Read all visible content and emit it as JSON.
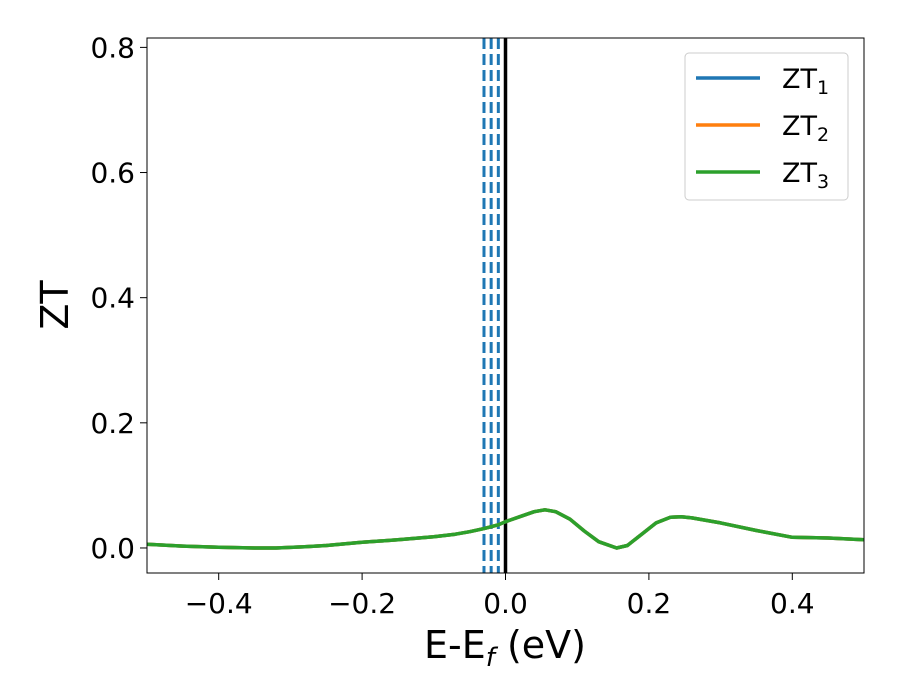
{
  "chart_data": {
    "type": "line",
    "xlabel": "E-E",
    "xlabel_sub": "f",
    "xlabel_unit": " (eV)",
    "ylabel": "ZT",
    "xlim": [
      -0.5,
      0.5
    ],
    "ylim": [
      -0.04,
      0.815
    ],
    "xticks": [
      -0.4,
      -0.2,
      0.0,
      0.2,
      0.4
    ],
    "xtick_labels": [
      "−0.4",
      "−0.2",
      "0.0",
      "0.2",
      "0.4"
    ],
    "yticks": [
      0.0,
      0.2,
      0.4,
      0.6,
      0.8
    ],
    "ytick_labels": [
      "0.0",
      "0.2",
      "0.4",
      "0.6",
      "0.8"
    ],
    "grid": false,
    "legend_position": "top-right",
    "series": [
      {
        "name": "ZT",
        "name_sub": "1",
        "color": "#1f77b4",
        "x": [
          -0.5,
          -0.45,
          -0.4,
          -0.35,
          -0.32,
          -0.28,
          -0.25,
          -0.2,
          -0.15,
          -0.1,
          -0.07,
          -0.05,
          -0.03,
          -0.02,
          -0.01,
          0.0,
          0.02,
          0.04,
          0.055,
          0.07,
          0.09,
          0.11,
          0.13,
          0.155,
          0.17,
          0.19,
          0.21,
          0.23,
          0.245,
          0.26,
          0.3,
          0.35,
          0.4,
          0.45,
          0.5
        ],
        "y": [
          0.006,
          0.003,
          0.001,
          0.0,
          0.0,
          0.002,
          0.004,
          0.009,
          0.013,
          0.018,
          0.022,
          0.026,
          0.031,
          0.034,
          0.037,
          0.042,
          0.05,
          0.058,
          0.061,
          0.058,
          0.046,
          0.027,
          0.01,
          0.0,
          0.004,
          0.022,
          0.04,
          0.049,
          0.05,
          0.048,
          0.04,
          0.028,
          0.017,
          0.016,
          0.013
        ]
      },
      {
        "name": "ZT",
        "name_sub": "2",
        "color": "#ff7f0e",
        "x": [
          -0.5,
          -0.45,
          -0.4,
          -0.35,
          -0.32,
          -0.28,
          -0.25,
          -0.2,
          -0.15,
          -0.1,
          -0.07,
          -0.05,
          -0.03,
          -0.02,
          -0.01,
          0.0,
          0.02,
          0.04,
          0.055,
          0.07,
          0.09,
          0.11,
          0.13,
          0.155,
          0.17,
          0.19,
          0.21,
          0.23,
          0.245,
          0.26,
          0.3,
          0.35,
          0.4,
          0.45,
          0.5
        ],
        "y": [
          0.006,
          0.003,
          0.001,
          0.0,
          0.0,
          0.002,
          0.004,
          0.009,
          0.013,
          0.018,
          0.022,
          0.026,
          0.031,
          0.034,
          0.037,
          0.042,
          0.05,
          0.058,
          0.061,
          0.058,
          0.046,
          0.027,
          0.01,
          0.0,
          0.004,
          0.022,
          0.04,
          0.049,
          0.05,
          0.048,
          0.04,
          0.028,
          0.017,
          0.016,
          0.013
        ]
      },
      {
        "name": "ZT",
        "name_sub": "3",
        "color": "#2ca02c",
        "x": [
          -0.5,
          -0.45,
          -0.4,
          -0.35,
          -0.32,
          -0.28,
          -0.25,
          -0.2,
          -0.15,
          -0.1,
          -0.07,
          -0.05,
          -0.03,
          -0.02,
          -0.01,
          0.0,
          0.02,
          0.04,
          0.055,
          0.07,
          0.09,
          0.11,
          0.13,
          0.155,
          0.17,
          0.19,
          0.21,
          0.23,
          0.245,
          0.26,
          0.3,
          0.35,
          0.4,
          0.45,
          0.5
        ],
        "y": [
          0.006,
          0.003,
          0.001,
          0.0,
          0.0,
          0.002,
          0.004,
          0.009,
          0.013,
          0.018,
          0.022,
          0.026,
          0.031,
          0.034,
          0.037,
          0.042,
          0.05,
          0.058,
          0.061,
          0.058,
          0.046,
          0.027,
          0.01,
          0.0,
          0.004,
          0.022,
          0.04,
          0.049,
          0.05,
          0.048,
          0.04,
          0.028,
          0.017,
          0.016,
          0.013
        ]
      }
    ],
    "vertical_lines": [
      {
        "x": -0.03,
        "style": "dashed",
        "color": "#1f77b4"
      },
      {
        "x": -0.02,
        "style": "dashed",
        "color": "#1f77b4"
      },
      {
        "x": -0.01,
        "style": "dashed",
        "color": "#1f77b4"
      },
      {
        "x": 0.0,
        "style": "solid",
        "color": "#000000"
      }
    ]
  }
}
